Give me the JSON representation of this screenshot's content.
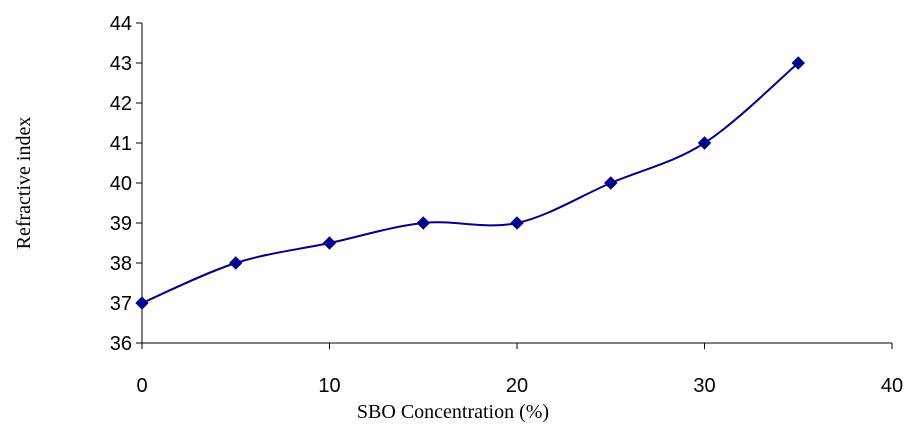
{
  "chart_data": {
    "type": "line",
    "xlabel": "SBO Concentration (%)",
    "ylabel": "Refractive index",
    "xlim": [
      0,
      40
    ],
    "ylim": [
      36,
      44
    ],
    "xticks": [
      0,
      10,
      20,
      30,
      40
    ],
    "yticks": [
      36,
      37,
      38,
      39,
      40,
      41,
      42,
      43,
      44
    ],
    "grid": false,
    "legend": "none",
    "smoothed": true,
    "marker": "diamond",
    "color": "#00008B",
    "series": [
      {
        "x": [
          0,
          5,
          10,
          15,
          20,
          25,
          30,
          35
        ],
        "values": [
          37,
          38,
          38.5,
          39,
          39,
          40,
          41,
          43
        ]
      }
    ]
  }
}
